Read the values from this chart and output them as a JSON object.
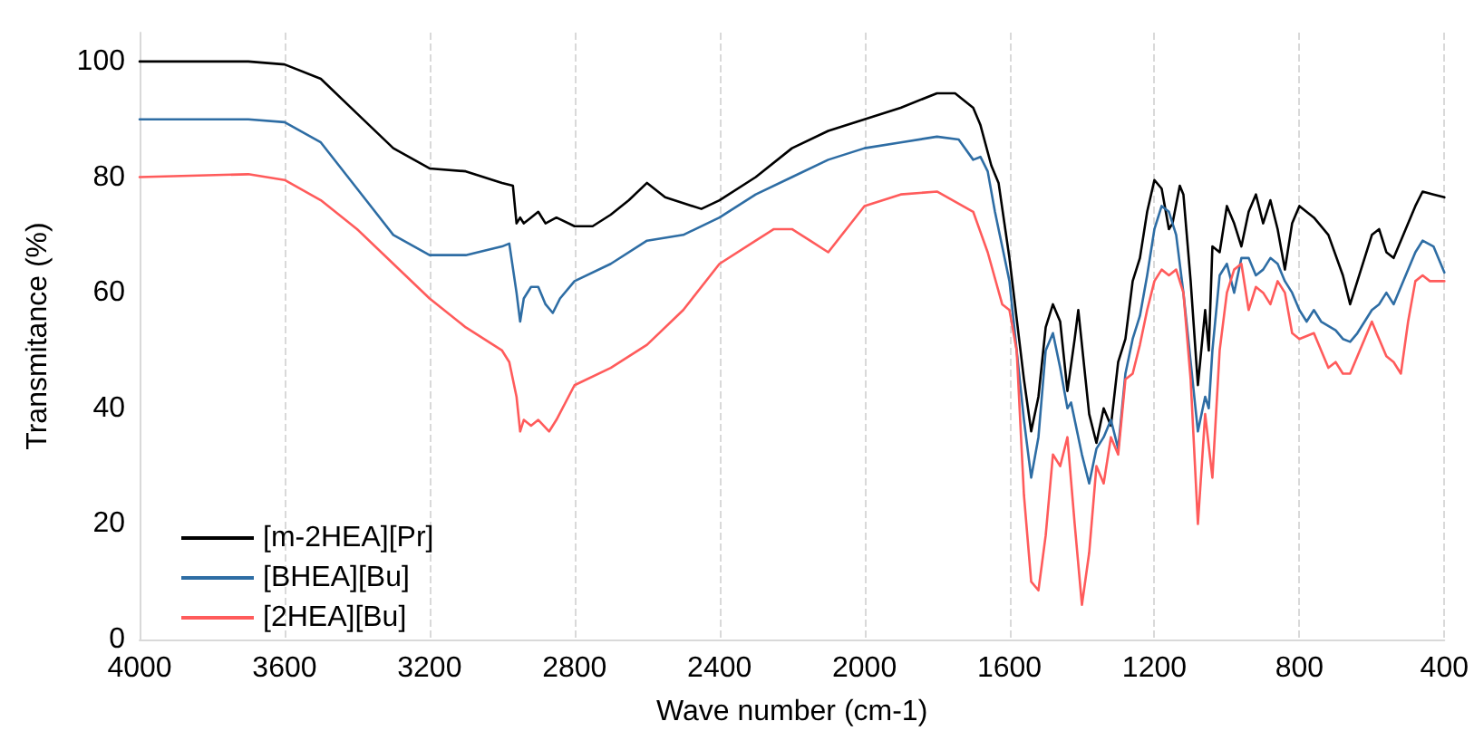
{
  "chart_data": {
    "type": "line",
    "xlabel": "Wave number (cm-1)",
    "ylabel": "Transmitance (%)",
    "xlim": [
      4000,
      400
    ],
    "xticks": [
      4000,
      3600,
      3200,
      2800,
      2400,
      2000,
      1600,
      1200,
      800,
      400
    ],
    "ylim": [
      0,
      105
    ],
    "yticks": [
      0,
      20,
      40,
      60,
      80,
      100
    ],
    "grid": "x",
    "legend": "bottom left",
    "marker": "none",
    "line_style": "solid",
    "series": [
      {
        "name": "[m-2HEA][Pr]",
        "color": "#000000",
        "x": [
          4000,
          3700,
          3600,
          3500,
          3400,
          3300,
          3200,
          3100,
          3000,
          2970,
          2960,
          2950,
          2940,
          2920,
          2900,
          2880,
          2850,
          2800,
          2750,
          2700,
          2650,
          2600,
          2550,
          2500,
          2450,
          2400,
          2300,
          2200,
          2100,
          2000,
          1900,
          1800,
          1750,
          1700,
          1680,
          1650,
          1630,
          1600,
          1560,
          1540,
          1520,
          1500,
          1480,
          1460,
          1440,
          1420,
          1410,
          1390,
          1380,
          1360,
          1340,
          1320,
          1300,
          1280,
          1260,
          1240,
          1220,
          1200,
          1180,
          1160,
          1150,
          1130,
          1120,
          1100,
          1080,
          1060,
          1050,
          1040,
          1020,
          1000,
          980,
          960,
          940,
          920,
          900,
          880,
          860,
          840,
          820,
          800,
          760,
          720,
          680,
          660,
          640,
          600,
          580,
          560,
          540,
          520,
          480,
          460,
          430,
          400
        ],
        "values": [
          100,
          100,
          99.5,
          97,
          91,
          85,
          81.5,
          81,
          79,
          78.5,
          72,
          73,
          72,
          73,
          74,
          72,
          73,
          71.5,
          71.5,
          73.5,
          76,
          79,
          76.5,
          75.5,
          74.5,
          76,
          80,
          85,
          88,
          90,
          92,
          94.5,
          94.5,
          92,
          89,
          82,
          79,
          66,
          45,
          36,
          42,
          54,
          58,
          55,
          43,
          52,
          57,
          45,
          39,
          34,
          40,
          37,
          48,
          52,
          62,
          66,
          74,
          79.5,
          78,
          71,
          72,
          78.5,
          77,
          62,
          44,
          57,
          50,
          68,
          67,
          75,
          72,
          68,
          74,
          77,
          72,
          76,
          71,
          64,
          72,
          75,
          73,
          70,
          63,
          58,
          62,
          70,
          71,
          67,
          66,
          69,
          75,
          77.5,
          77,
          76.5
        ]
      },
      {
        "name": "[BHEA][Bu]",
        "color": "#2e6da4",
        "x": [
          4000,
          3700,
          3600,
          3500,
          3400,
          3300,
          3200,
          3100,
          3000,
          2980,
          2960,
          2950,
          2940,
          2920,
          2900,
          2880,
          2860,
          2840,
          2800,
          2700,
          2600,
          2500,
          2400,
          2300,
          2200,
          2100,
          2000,
          1900,
          1800,
          1740,
          1700,
          1680,
          1660,
          1640,
          1620,
          1600,
          1560,
          1540,
          1520,
          1500,
          1480,
          1460,
          1440,
          1430,
          1400,
          1380,
          1360,
          1340,
          1320,
          1300,
          1280,
          1260,
          1240,
          1220,
          1200,
          1180,
          1160,
          1140,
          1120,
          1100,
          1080,
          1060,
          1050,
          1040,
          1020,
          1000,
          980,
          960,
          940,
          920,
          900,
          880,
          860,
          840,
          820,
          800,
          780,
          760,
          740,
          700,
          680,
          660,
          640,
          600,
          580,
          560,
          540,
          520,
          480,
          460,
          430,
          400
        ],
        "values": [
          90,
          90,
          89.5,
          86,
          78,
          70,
          66.5,
          66.5,
          68,
          68.5,
          60,
          55,
          59,
          61,
          61,
          58,
          56.5,
          59,
          62,
          65,
          69,
          70,
          73,
          77,
          80,
          83,
          85,
          86,
          87,
          86.5,
          83,
          83.5,
          81,
          74,
          68,
          62,
          38,
          28,
          35,
          50,
          53,
          47,
          40,
          41,
          32,
          27,
          33,
          35,
          38,
          33,
          46,
          52,
          56,
          63,
          71,
          75,
          74,
          70,
          60,
          48,
          36,
          42,
          40,
          50,
          63,
          65,
          60,
          66,
          66,
          63,
          64,
          66,
          65,
          62,
          60,
          57,
          55,
          57,
          55,
          53.5,
          52,
          51.5,
          53,
          57,
          58,
          60,
          58,
          61,
          67,
          69,
          68,
          63.5
        ]
      },
      {
        "name": "[2HEA][Bu]",
        "color": "#ff5b5b",
        "x": [
          4000,
          3700,
          3600,
          3500,
          3400,
          3300,
          3200,
          3100,
          3000,
          2980,
          2960,
          2950,
          2940,
          2920,
          2900,
          2870,
          2850,
          2800,
          2700,
          2600,
          2500,
          2400,
          2300,
          2250,
          2200,
          2150,
          2100,
          2050,
          2000,
          1900,
          1800,
          1700,
          1660,
          1620,
          1600,
          1580,
          1560,
          1540,
          1520,
          1500,
          1480,
          1460,
          1440,
          1420,
          1400,
          1380,
          1360,
          1340,
          1320,
          1300,
          1280,
          1260,
          1240,
          1220,
          1200,
          1180,
          1160,
          1140,
          1120,
          1100,
          1080,
          1060,
          1040,
          1020,
          1000,
          980,
          960,
          940,
          920,
          900,
          880,
          860,
          840,
          820,
          800,
          760,
          720,
          700,
          680,
          660,
          620,
          600,
          580,
          560,
          540,
          520,
          500,
          480,
          460,
          440,
          400
        ],
        "values": [
          80,
          80.5,
          79.5,
          76,
          71,
          65,
          59,
          54,
          50,
          48,
          42,
          36,
          38,
          37,
          38,
          36,
          38,
          44,
          47,
          51,
          57,
          65,
          69,
          71,
          71,
          69,
          67,
          71,
          75,
          77,
          77.5,
          74,
          67,
          58,
          57,
          50,
          25,
          10,
          8.5,
          18,
          32,
          30,
          35,
          20,
          6,
          15,
          30,
          27,
          35,
          32,
          45,
          46,
          51,
          57,
          62,
          64,
          63,
          64,
          60,
          45,
          20,
          39,
          28,
          50,
          60,
          64,
          65,
          57,
          61,
          60,
          58,
          62,
          60,
          53,
          52,
          53,
          47,
          48,
          46,
          46,
          52,
          55,
          52,
          49,
          48,
          46,
          55,
          62,
          63,
          62,
          62
        ]
      }
    ]
  }
}
